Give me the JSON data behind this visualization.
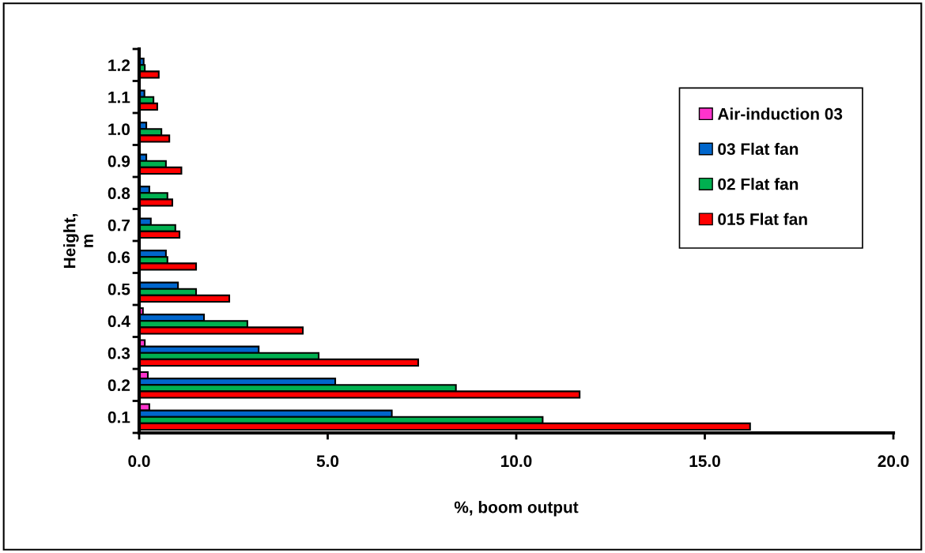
{
  "chart_data": {
    "type": "bar",
    "orientation": "horizontal",
    "categories": [
      "1.2",
      "1.1",
      "1.0",
      "0.9",
      "0.8",
      "0.7",
      "0.6",
      "0.5",
      "0.4",
      "0.3",
      "0.2",
      "0.1"
    ],
    "series": [
      {
        "name": "Air-induction 03",
        "color": "#ff33cc",
        "values": [
          null,
          null,
          null,
          null,
          null,
          null,
          null,
          null,
          0.1,
          0.15,
          0.23,
          0.27
        ]
      },
      {
        "name": "03 Flat fan",
        "color": "#0066cc",
        "values": [
          0.12,
          0.14,
          0.19,
          0.19,
          0.27,
          0.31,
          0.71,
          1.03,
          1.72,
          3.17,
          5.2,
          6.7
        ]
      },
      {
        "name": "02 Flat fan",
        "color": "#00b050",
        "values": [
          0.15,
          0.38,
          0.59,
          0.71,
          0.75,
          0.96,
          0.75,
          1.51,
          2.87,
          4.76,
          8.4,
          10.7
        ]
      },
      {
        "name": "015 Flat fan",
        "color": "#ff0000",
        "values": [
          0.52,
          0.48,
          0.8,
          1.12,
          0.88,
          1.07,
          1.51,
          2.39,
          4.34,
          7.4,
          11.68,
          16.2
        ]
      }
    ],
    "xlabel": "%, boom output",
    "ylabel": "Height,\nm",
    "xlim": [
      0,
      20
    ],
    "xticks": [
      {
        "value": 0,
        "label": "0.0"
      },
      {
        "value": 5,
        "label": "5.0"
      },
      {
        "value": 10,
        "label": "10.0"
      },
      {
        "value": 15,
        "label": "15.0"
      },
      {
        "value": 20,
        "label": "20.0"
      }
    ],
    "grid": false,
    "legend": "top right"
  }
}
